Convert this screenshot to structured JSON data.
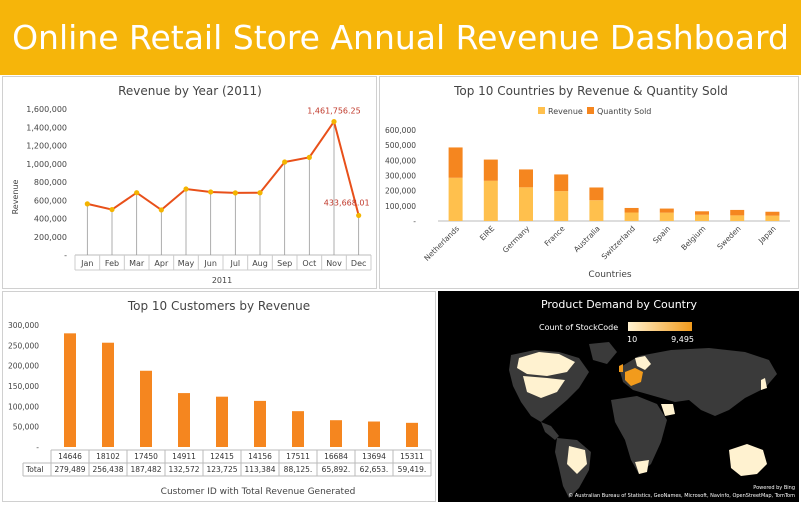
{
  "header": {
    "title": "Online Retail Store Annual Revenue Dashboard"
  },
  "colors": {
    "header_bg": "#f6b50a",
    "line": "#e8501a",
    "marker": "#f4b400",
    "revenue": "#ffc04d",
    "quantity": "#f5861f",
    "customer_bar": "#f5861f",
    "map_bg": "#000000",
    "land": "#3a3a3a",
    "grad_low": "#fff2d0",
    "grad_high": "#f29b1c"
  },
  "chart_data": [
    {
      "id": "revenue_by_year",
      "type": "line",
      "title": "Revenue by Year (2011)",
      "xlabel": "2011",
      "ylabel": "Revenue",
      "categories": [
        "Jan",
        "Feb",
        "Mar",
        "Apr",
        "May",
        "Jun",
        "Jul",
        "Aug",
        "Sep",
        "Oct",
        "Nov",
        "Dec"
      ],
      "values": [
        560000,
        498000,
        683000,
        494000,
        723000,
        691000,
        681000,
        682000,
        1019000,
        1070000,
        1461756.25,
        433668.01
      ],
      "data_labels": {
        "10": "1,461,756.25",
        "11": "433,668.01"
      },
      "yticks": [
        "-",
        "200,000",
        "400,000",
        "600,000",
        "800,000",
        "1,000,000",
        "1,200,000",
        "1,400,000",
        "1,600,000"
      ],
      "ylim": [
        0,
        1600000
      ],
      "grid": false
    },
    {
      "id": "top_countries",
      "type": "bar",
      "stacked": true,
      "title": "Top 10 Countries by Revenue & Quantity Sold",
      "xlabel": "Countries",
      "ylabel": "",
      "legend": "top",
      "categories": [
        "Netherlands",
        "EIRE",
        "Germany",
        "France",
        "Australia",
        "Switzerland",
        "Spain",
        "Belgium",
        "Sweden",
        "Japan"
      ],
      "series": [
        {
          "name": "Revenue",
          "values": [
            285000,
            265000,
            222000,
            197000,
            137000,
            56000,
            55000,
            41000,
            37000,
            35000
          ]
        },
        {
          "name": "Quantity Sold",
          "values": [
            200000,
            140000,
            118000,
            110000,
            84000,
            30000,
            27000,
            23000,
            36000,
            26000
          ]
        }
      ],
      "yticks": [
        "-",
        "100,000",
        "200,000",
        "300,000",
        "400,000",
        "500,000",
        "600,000"
      ],
      "ylim": [
        0,
        600000
      ]
    },
    {
      "id": "top_customers",
      "type": "bar",
      "title": "Top 10 Customers by Revenue",
      "xlabel": "Customer ID with Total Revenue Generated",
      "ylabel": "",
      "categories": [
        "14646",
        "18102",
        "17450",
        "14911",
        "12415",
        "14156",
        "17511",
        "16684",
        "13694",
        "15311"
      ],
      "values": [
        279489,
        256438,
        187482,
        132572,
        123725,
        113384,
        88125,
        65892,
        62653,
        59419
      ],
      "table_total_label": "Total",
      "table_values": [
        "279,489",
        "256,438",
        "187,482",
        "132,572",
        "123,725",
        "113,384",
        "88,125.",
        "65,892.",
        "62,653.",
        "59,419."
      ],
      "yticks": [
        "-",
        "50,000",
        "100,000",
        "150,000",
        "200,000",
        "250,000",
        "300,000"
      ],
      "ylim": [
        0,
        300000
      ]
    }
  ],
  "map": {
    "title": "Product Demand by Country",
    "legend_label": "Count of StockCode",
    "legend_min": "10",
    "legend_max": "9,495",
    "powered_by": "Powered by Bing",
    "attribution": "© Australian Bureau of Statistics, GeoNames, Microsoft, Navinfo, OpenStreetMap, TomTom"
  }
}
